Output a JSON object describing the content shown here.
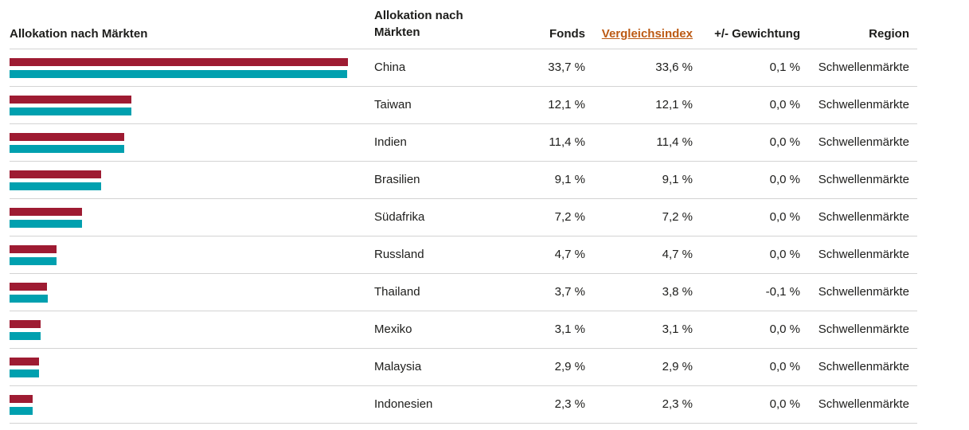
{
  "colors": {
    "fund_bar": "#9e1b32",
    "index_bar": "#00a0af",
    "link": "#bc5a14",
    "text": "#1d1d1b",
    "divider": "#d3d3d3"
  },
  "chart": {
    "title": "Allokation nach Märkten"
  },
  "table": {
    "headers": {
      "market": "Allokation nach Märkten",
      "fund": "Fonds",
      "index": "Vergleichsindex",
      "weight": "+/- Gewichtung",
      "region": "Region"
    },
    "rows": [
      {
        "market": "China",
        "fund": "33,7 %",
        "index": "33,6 %",
        "weight": "0,1 %",
        "region": "Schwellenmärkte"
      },
      {
        "market": "Taiwan",
        "fund": "12,1 %",
        "index": "12,1 %",
        "weight": "0,0 %",
        "region": "Schwellenmärkte"
      },
      {
        "market": "Indien",
        "fund": "11,4 %",
        "index": "11,4 %",
        "weight": "0,0 %",
        "region": "Schwellenmärkte"
      },
      {
        "market": "Brasilien",
        "fund": "9,1 %",
        "index": "9,1 %",
        "weight": "0,0 %",
        "region": "Schwellenmärkte"
      },
      {
        "market": "Südafrika",
        "fund": "7,2 %",
        "index": "7,2 %",
        "weight": "0,0 %",
        "region": "Schwellenmärkte"
      },
      {
        "market": "Russland",
        "fund": "4,7 %",
        "index": "4,7 %",
        "weight": "0,0 %",
        "region": "Schwellenmärkte"
      },
      {
        "market": "Thailand",
        "fund": "3,7 %",
        "index": "3,8 %",
        "weight": "-0,1 %",
        "region": "Schwellenmärkte"
      },
      {
        "market": "Mexiko",
        "fund": "3,1 %",
        "index": "3,1 %",
        "weight": "0,0 %",
        "region": "Schwellenmärkte"
      },
      {
        "market": "Malaysia",
        "fund": "2,9 %",
        "index": "2,9 %",
        "weight": "0,0 %",
        "region": "Schwellenmärkte"
      },
      {
        "market": "Indonesien",
        "fund": "2,3 %",
        "index": "2,3 %",
        "weight": "0,0 %",
        "region": "Schwellenmärkte"
      }
    ]
  },
  "chart_data": {
    "type": "bar",
    "orientation": "horizontal",
    "title": "Allokation nach Märkten",
    "categories": [
      "China",
      "Taiwan",
      "Indien",
      "Brasilien",
      "Südafrika",
      "Russland",
      "Thailand",
      "Mexiko",
      "Malaysia",
      "Indonesien"
    ],
    "series": [
      {
        "name": "Fonds",
        "color": "#9e1b32",
        "values": [
          33.7,
          12.1,
          11.4,
          9.1,
          7.2,
          4.7,
          3.7,
          3.1,
          2.9,
          2.3
        ]
      },
      {
        "name": "Vergleichsindex",
        "color": "#00a0af",
        "values": [
          33.6,
          12.1,
          11.4,
          9.1,
          7.2,
          4.7,
          3.8,
          3.1,
          2.9,
          2.3
        ]
      }
    ],
    "xlim": [
      0,
      33.7
    ],
    "unit": "%",
    "legend_position": "none",
    "grid": false
  }
}
